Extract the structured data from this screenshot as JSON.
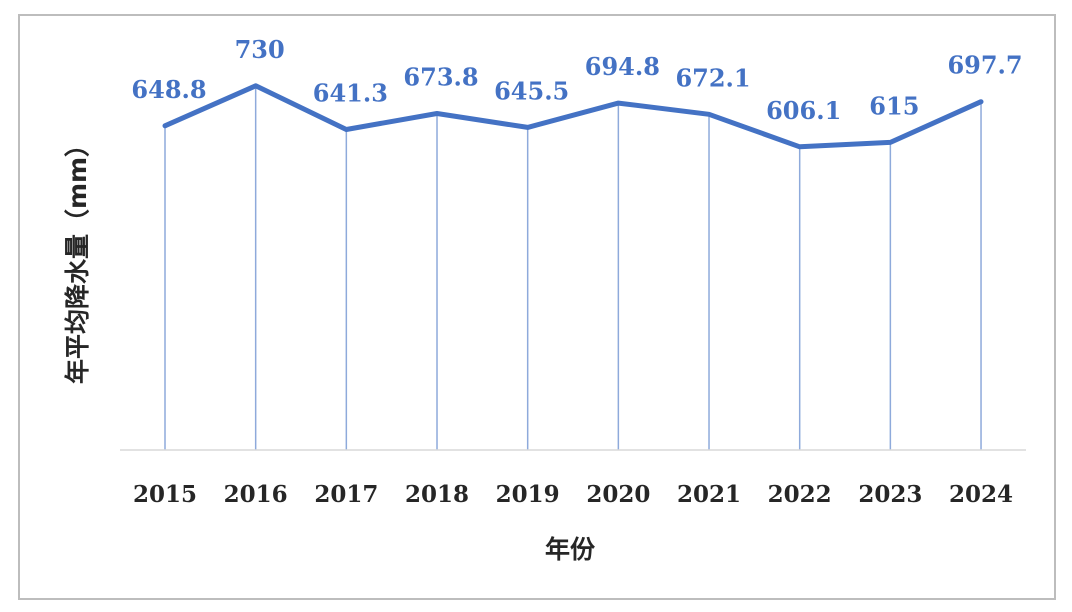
{
  "chart_data": {
    "type": "line",
    "title": "",
    "xlabel": "年份",
    "ylabel": "年平均降水量（mm）",
    "categories": [
      "2015",
      "2016",
      "2017",
      "2018",
      "2019",
      "2020",
      "2021",
      "2022",
      "2023",
      "2024"
    ],
    "series": [
      {
        "values": [
          648.8,
          730,
          641.3,
          673.8,
          645.5,
          694.8,
          672.1,
          606.1,
          615,
          697.7
        ],
        "data_labels": [
          "648.8",
          "730",
          "641.3",
          "673.8",
          "645.5",
          "694.8",
          "672.1",
          "606.1",
          "615",
          "697.7"
        ]
      }
    ],
    "drop_lines": true,
    "grid": false,
    "legend": "none",
    "colors": {
      "line": "#4472c4",
      "drop_line": "#8eaadb",
      "axis": "#d9d9d9",
      "text": "#262626"
    }
  }
}
